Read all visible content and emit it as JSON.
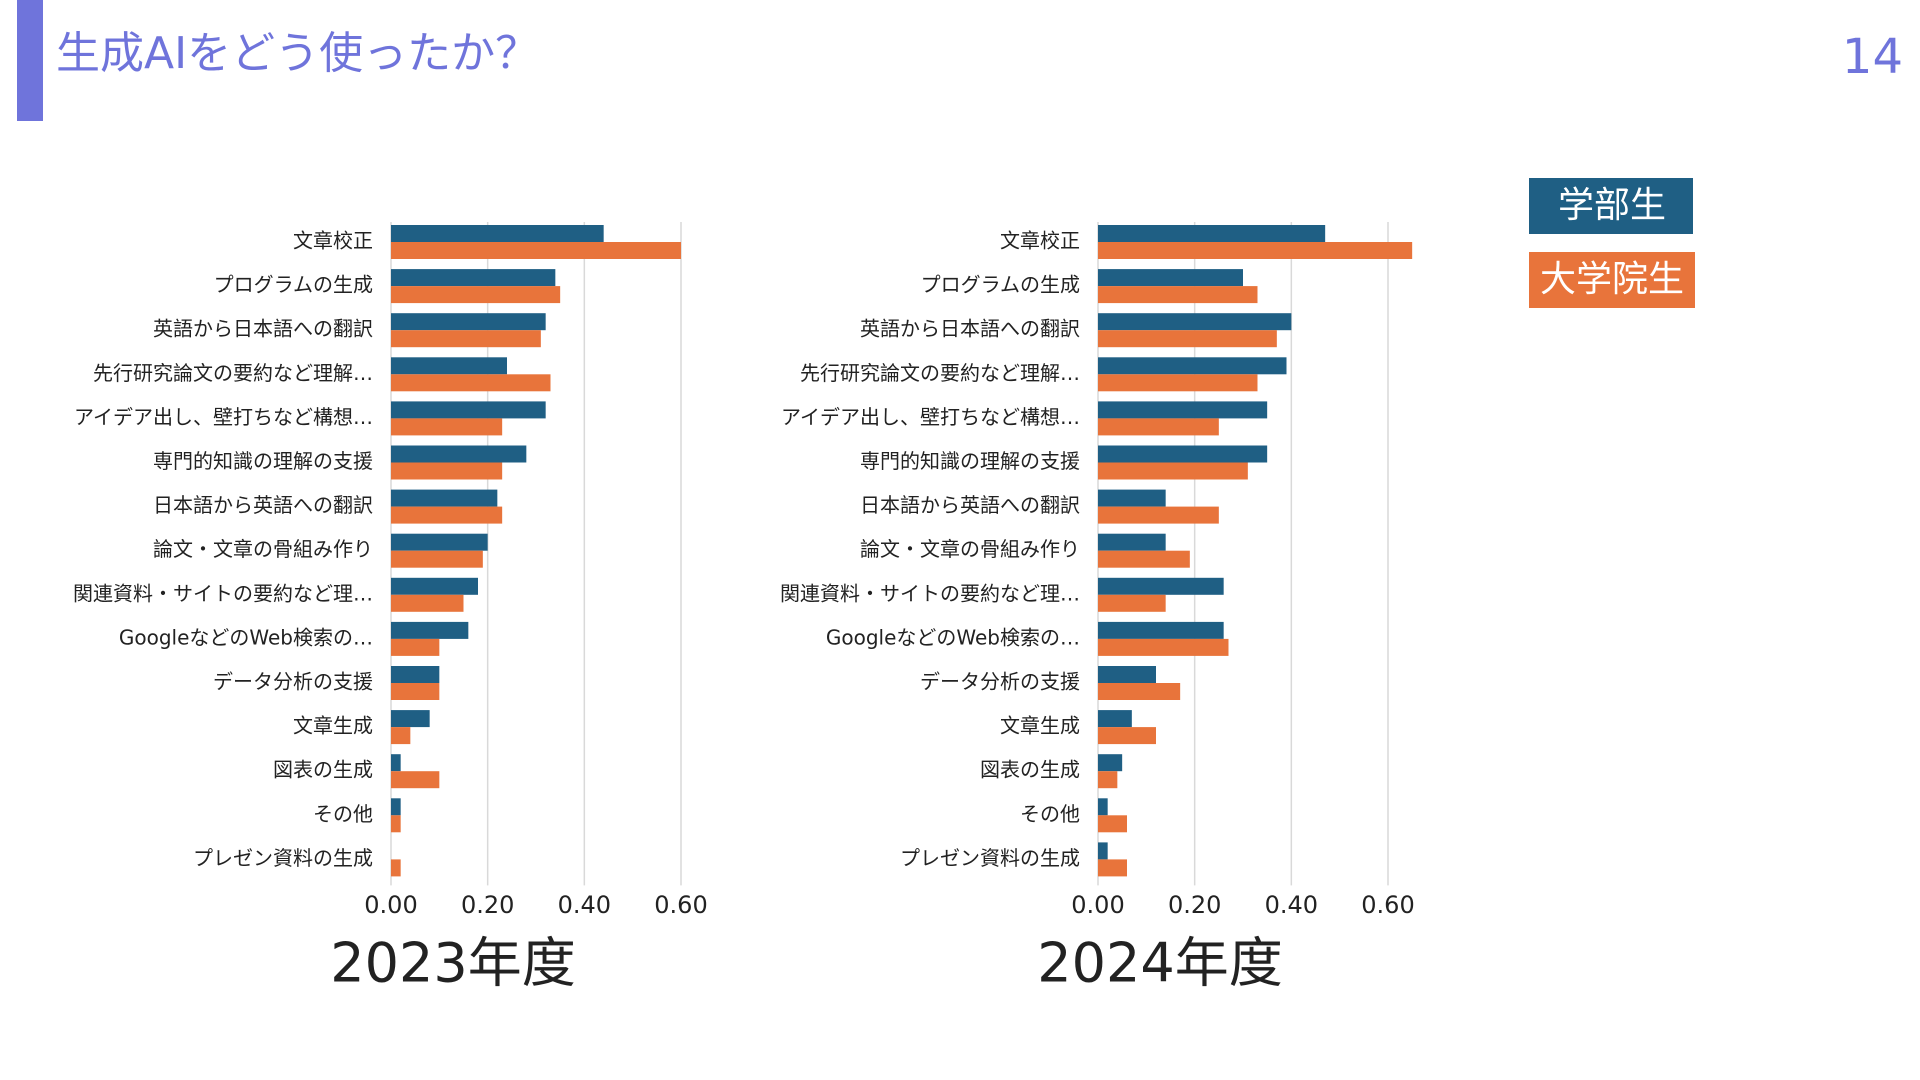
{
  "header": {
    "title": "生成AIをどう使ったか？",
    "page_number": "14"
  },
  "chart_data": [
    {
      "type": "bar",
      "orientation": "horizontal",
      "title": "2023年度",
      "categories": [
        "文章校正",
        "プログラムの生成",
        "英語から日本語への翻訳",
        "先行研究論文の要約など理解…",
        "アイデア出し、壁打ちなど構想…",
        "専門的知識の理解の支援",
        "日本語から英語への翻訳",
        "論文・文章の骨組み作り",
        "関連資料・サイトの要約など理…",
        "GoogleなどのWeb検索の…",
        "データ分析の支援",
        "文章生成",
        "図表の生成",
        "その他",
        "プレゼン資料の生成"
      ],
      "series": [
        {
          "name": "学部生",
          "color": "#1f5f84",
          "values": [
            0.44,
            0.34,
            0.32,
            0.24,
            0.32,
            0.28,
            0.22,
            0.2,
            0.18,
            0.16,
            0.1,
            0.08,
            0.02,
            0.02,
            0
          ]
        },
        {
          "name": "大学院生",
          "color": "#e8743b",
          "values": [
            0.6,
            0.35,
            0.31,
            0.33,
            0.23,
            0.23,
            0.23,
            0.19,
            0.15,
            0.1,
            0.1,
            0.04,
            0.1,
            0.02,
            0.02
          ]
        }
      ],
      "xlim": [
        0,
        0.65
      ],
      "xticks": [
        {
          "value": 0,
          "label": "0.00"
        },
        {
          "value": 0.2,
          "label": "0.20"
        },
        {
          "value": 0.4,
          "label": "0.40"
        },
        {
          "value": 0.6,
          "label": "0.60"
        }
      ],
      "grid": true
    },
    {
      "type": "bar",
      "orientation": "horizontal",
      "title": "2024年度",
      "categories": [
        "文章校正",
        "プログラムの生成",
        "英語から日本語への翻訳",
        "先行研究論文の要約など理解…",
        "アイデア出し、壁打ちなど構想…",
        "専門的知識の理解の支援",
        "日本語から英語への翻訳",
        "論文・文章の骨組み作り",
        "関連資料・サイトの要約など理…",
        "GoogleなどのWeb検索の…",
        "データ分析の支援",
        "文章生成",
        "図表の生成",
        "その他",
        "プレゼン資料の生成"
      ],
      "series": [
        {
          "color": "#1f5f84",
          "values": [
            0.47,
            0.3,
            0.4,
            0.39,
            0.35,
            0.35,
            0.14,
            0.14,
            0.26,
            0.26,
            0.12,
            0.07,
            0.05,
            0.02,
            0.02
          ]
        },
        {
          "color": "#e8743b",
          "values": [
            0.65,
            0.33,
            0.37,
            0.33,
            0.25,
            0.31,
            0.25,
            0.19,
            0.14,
            0.27,
            0.17,
            0.12,
            0.04,
            0.06,
            0.06
          ]
        }
      ],
      "xlim": [
        0,
        0.65
      ],
      "xticks": [
        {
          "value": 0,
          "label": "0.00"
        },
        {
          "value": 0.2,
          "label": "0.20"
        },
        {
          "value": 0.4,
          "label": "0.40"
        },
        {
          "value": 0.6,
          "label": "0.60"
        }
      ],
      "grid": true
    }
  ]
}
